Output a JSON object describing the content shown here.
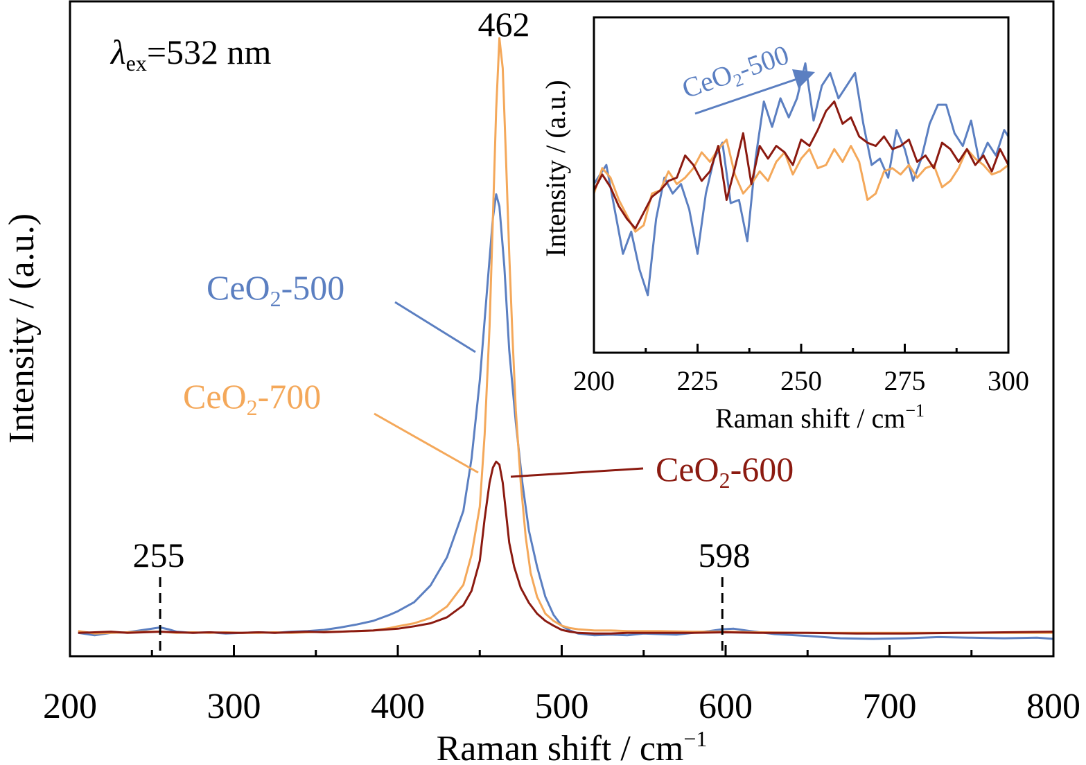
{
  "chart_data": [
    {
      "type": "line",
      "xlabel_main": "Raman shift",
      "xlabel_unit": "cm",
      "xlabel_exp": "−1",
      "ylabel": "Intensity / (a.u.)",
      "xlim": [
        200,
        800
      ],
      "ylim": [
        0,
        100
      ],
      "x_ticks": [
        "200",
        "300",
        "400",
        "500",
        "600",
        "700",
        "800"
      ],
      "y_ticks_shown": false,
      "grid": false,
      "excitation": {
        "symbol": "λ",
        "sub": "ex",
        "value": "=532 nm"
      },
      "peak_labels": [
        {
          "x": 462,
          "text": "462"
        },
        {
          "x": 255,
          "text": "255",
          "dashed": true
        },
        {
          "x": 598,
          "text": "598",
          "dashed": true
        }
      ],
      "series": [
        {
          "name": "CeO2-500",
          "label_base": "CeO",
          "label_sub": "2",
          "label_suffix": "-500",
          "color": "#5B7FC1",
          "x": [
            205,
            215,
            225,
            235,
            245,
            255,
            260,
            265,
            275,
            285,
            295,
            305,
            315,
            325,
            335,
            345,
            355,
            365,
            375,
            385,
            395,
            400,
            410,
            420,
            430,
            440,
            445,
            450,
            455,
            458,
            460,
            462,
            465,
            468,
            472,
            476,
            480,
            485,
            490,
            495,
            500,
            505,
            510,
            520,
            530,
            540,
            550,
            560,
            570,
            580,
            590,
            598,
            605,
            615,
            630,
            650,
            670,
            690,
            710,
            730,
            750,
            770,
            790,
            800
          ],
          "y": [
            1.0,
            0.6,
            1.0,
            1.1,
            1.5,
            1.9,
            1.6,
            1.2,
            1.0,
            1.1,
            0.9,
            1.0,
            1.1,
            1.0,
            1.2,
            1.3,
            1.5,
            1.9,
            2.4,
            3.0,
            4.0,
            4.6,
            6.1,
            8.9,
            13.6,
            21.3,
            30.0,
            43.0,
            60.0,
            70.0,
            74.0,
            72.0,
            62.0,
            48.0,
            36.0,
            26.0,
            18.0,
            12.0,
            7.0,
            4.0,
            2.2,
            1.4,
            0.9,
            0.6,
            0.7,
            0.6,
            0.9,
            0.8,
            0.7,
            1.0,
            1.3,
            1.6,
            1.7,
            1.3,
            0.8,
            0.5,
            0.1,
            0.0,
            0.1,
            0.3,
            0.2,
            0.1,
            0.2,
            0.0
          ]
        },
        {
          "name": "CeO2-700",
          "label_base": "CeO",
          "label_sub": "2",
          "label_suffix": "-700",
          "color": "#F4A85A",
          "x": [
            205,
            215,
            225,
            235,
            245,
            255,
            265,
            275,
            285,
            295,
            305,
            315,
            325,
            335,
            345,
            355,
            365,
            375,
            385,
            395,
            400,
            410,
            420,
            430,
            440,
            445,
            450,
            453,
            456,
            458,
            460,
            462,
            464,
            466,
            468,
            470,
            472,
            475,
            478,
            481,
            485,
            490,
            495,
            500,
            505,
            510,
            520,
            530,
            540,
            560,
            580,
            600,
            620,
            650,
            680,
            710,
            740,
            770,
            800
          ],
          "y": [
            1.3,
            0.9,
            1.0,
            1.1,
            1.2,
            1.2,
            1.0,
            1.1,
            1.0,
            1.1,
            1.0,
            1.0,
            1.1,
            1.0,
            1.1,
            1.2,
            1.2,
            1.3,
            1.4,
            1.8,
            2.1,
            2.6,
            3.5,
            5.4,
            9.0,
            14.0,
            22.0,
            34.0,
            52.0,
            70.0,
            88.0,
            100.0,
            95.0,
            80.0,
            64.0,
            50.0,
            38.0,
            26.0,
            17.0,
            11.0,
            7.0,
            4.2,
            3.0,
            2.2,
            1.8,
            1.6,
            1.4,
            1.4,
            1.3,
            1.3,
            1.2,
            1.2,
            1.1,
            1.0,
            1.0,
            1.0,
            1.0,
            1.0,
            1.0
          ]
        },
        {
          "name": "CeO2-600",
          "label_base": "CeO",
          "label_sub": "2",
          "label_suffix": "-600",
          "color": "#8B1A10",
          "x": [
            205,
            215,
            225,
            235,
            245,
            255,
            265,
            275,
            285,
            295,
            305,
            315,
            325,
            335,
            345,
            355,
            365,
            375,
            385,
            395,
            400,
            410,
            420,
            430,
            440,
            445,
            450,
            453,
            456,
            458,
            460,
            462,
            464,
            466,
            468,
            471,
            475,
            480,
            485,
            490,
            495,
            500,
            505,
            510,
            520,
            530,
            540,
            560,
            580,
            600,
            620,
            650,
            680,
            710,
            740,
            770,
            800
          ],
          "y": [
            1.0,
            1.1,
            1.2,
            1.0,
            1.1,
            1.2,
            1.1,
            1.0,
            1.1,
            1.0,
            1.0,
            1.1,
            1.0,
            1.1,
            1.2,
            1.1,
            1.2,
            1.3,
            1.4,
            1.6,
            1.7,
            2.1,
            2.6,
            3.6,
            5.6,
            8.0,
            13.0,
            20.0,
            26.0,
            28.5,
            29.5,
            29.0,
            26.0,
            21.0,
            16.0,
            12.0,
            8.5,
            6.0,
            4.2,
            3.0,
            2.2,
            1.5,
            1.2,
            1.0,
            0.9,
            0.9,
            1.0,
            1.0,
            1.0,
            1.1,
            1.0,
            1.0,
            0.9,
            0.9,
            1.0,
            1.1,
            1.2
          ]
        }
      ]
    },
    {
      "type": "line",
      "role": "inset",
      "xlabel_main": "Raman shift",
      "xlabel_unit": "cm",
      "xlabel_exp": "−1",
      "ylabel": "Intensity / (a.u.)",
      "xlim": [
        200,
        300
      ],
      "ylim": [
        0,
        100
      ],
      "x_ticks": [
        "200",
        "225",
        "250",
        "275",
        "300"
      ],
      "y_ticks_shown": false,
      "grid": false,
      "annotation": {
        "base": "CeO",
        "sub": "2",
        "suffix": "-500",
        "arrow": true
      },
      "series": [
        {
          "name": "CeO2-500",
          "color": "#5B7FC1",
          "x": [
            200,
            203,
            205,
            207,
            209,
            211,
            213,
            215,
            217,
            219,
            221,
            223,
            225,
            227,
            229,
            231,
            233,
            235,
            237,
            239,
            241,
            243,
            245,
            247,
            249,
            251,
            253,
            255,
            257,
            259,
            261,
            263,
            265,
            267,
            269,
            271,
            273,
            275,
            277,
            279,
            281,
            283,
            285,
            287,
            289,
            291,
            293,
            295,
            297,
            299,
            300
          ],
          "y": [
            49,
            55,
            41,
            27,
            34,
            22,
            14,
            38,
            51,
            46,
            49,
            41,
            27,
            46,
            57,
            62,
            43,
            44,
            31,
            57,
            75,
            67,
            76,
            70,
            76,
            87,
            69,
            80,
            84,
            76,
            80,
            84,
            68,
            55,
            57,
            51,
            66,
            60,
            50,
            57,
            68,
            74,
            74,
            65,
            61,
            69,
            56,
            62,
            58,
            66,
            64
          ]
        },
        {
          "name": "CeO2-700",
          "color": "#F4A85A",
          "x": [
            200,
            202,
            204,
            206,
            208,
            210,
            212,
            214,
            216,
            218,
            220,
            222,
            224,
            226,
            228,
            230,
            232,
            234,
            236,
            238,
            240,
            242,
            244,
            246,
            248,
            250,
            252,
            254,
            256,
            258,
            260,
            262,
            264,
            266,
            268,
            270,
            272,
            274,
            276,
            278,
            280,
            282,
            284,
            286,
            288,
            290,
            292,
            294,
            296,
            298,
            300
          ],
          "y": [
            46,
            54,
            51,
            44,
            39,
            34,
            36,
            46,
            47,
            53,
            49,
            51,
            54,
            59,
            56,
            60,
            63,
            52,
            46,
            49,
            53,
            50,
            56,
            59,
            52,
            57,
            60,
            54,
            55,
            60,
            56,
            61,
            56,
            44,
            46,
            53,
            54,
            52,
            55,
            51,
            54,
            55,
            48,
            50,
            54,
            60,
            57,
            55,
            52,
            53,
            55
          ]
        },
        {
          "name": "CeO2-600",
          "color": "#8B1A10",
          "x": [
            200,
            202,
            204,
            206,
            208,
            210,
            212,
            214,
            216,
            218,
            220,
            222,
            224,
            226,
            228,
            230,
            232,
            234,
            236,
            238,
            240,
            242,
            244,
            246,
            248,
            250,
            252,
            254,
            256,
            258,
            260,
            262,
            264,
            266,
            268,
            270,
            272,
            274,
            276,
            278,
            280,
            282,
            284,
            286,
            288,
            290,
            292,
            294,
            296,
            298,
            300
          ],
          "y": [
            47,
            52,
            48,
            42,
            38,
            35,
            40,
            45,
            47,
            50,
            51,
            58,
            55,
            50,
            53,
            61,
            44,
            54,
            65,
            49,
            61,
            57,
            61,
            59,
            55,
            63,
            61,
            66,
            72,
            75,
            68,
            70,
            64,
            62,
            61,
            64,
            60,
            61,
            63,
            56,
            58,
            54,
            62,
            60,
            56,
            60,
            55,
            58,
            53,
            60,
            55
          ]
        }
      ]
    }
  ]
}
